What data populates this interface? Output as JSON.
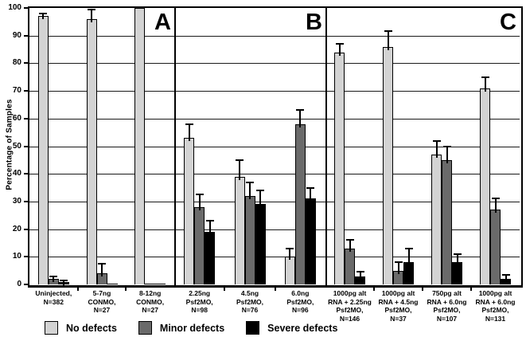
{
  "chart_data": {
    "type": "bar",
    "title": "",
    "xlabel": "",
    "ylabel": "Percentage of Samples",
    "ylim": [
      0,
      100
    ],
    "ytick_step": 10,
    "grid": true,
    "legend_position": "bottom",
    "series": [
      {
        "name": "No defects",
        "color": "#d3d3d3"
      },
      {
        "name": "Minor defects",
        "color": "#6a6a6a"
      },
      {
        "name": "Severe defects",
        "color": "#000000"
      }
    ],
    "panels": [
      {
        "label": "A",
        "groups": [
          {
            "category": "Uninjected,\nN=382",
            "values": [
              97,
              2,
              1
            ],
            "errors": [
              1,
              0.8,
              0.5
            ]
          },
          {
            "category": "5-7ng\nCONMO,\nN=27",
            "values": [
              96,
              4,
              0.3
            ],
            "errors": [
              3.5,
              3.5,
              0
            ]
          },
          {
            "category": "8-12ng\nCONMO,\nN=27",
            "values": [
              100,
              0.3,
              0.3
            ],
            "errors": [
              0,
              0,
              0
            ]
          }
        ]
      },
      {
        "label": "B",
        "groups": [
          {
            "category": "2.25ng\nPsf2MO,\nN=98",
            "values": [
              53,
              28,
              19
            ],
            "errors": [
              5,
              4.5,
              4
            ]
          },
          {
            "category": "4.5ng\nPsf2MO,\nN=76",
            "values": [
              39,
              32,
              29
            ],
            "errors": [
              6,
              5,
              5
            ]
          },
          {
            "category": "6.0ng\nPsf2MO,\nN=96",
            "values": [
              10,
              58,
              31
            ],
            "errors": [
              3,
              5,
              4
            ]
          }
        ]
      },
      {
        "label": "C",
        "groups": [
          {
            "category": "1000pg alt\nRNA + 2.25ng\nPsf2MO,\nN=146",
            "values": [
              84,
              13,
              3
            ],
            "errors": [
              3,
              3,
              1.5
            ]
          },
          {
            "category": "1000pg alt\nRNA + 4.5ng\nPsf2MO,\nN=37",
            "values": [
              86,
              5,
              8
            ],
            "errors": [
              5.5,
              3,
              5
            ]
          },
          {
            "category": "750pg alt\nRNA + 6.0ng\nPsf2MO,\nN=107",
            "values": [
              47,
              45,
              8
            ],
            "errors": [
              5,
              5,
              3
            ]
          },
          {
            "category": "1000pg alt\nRNA + 6.0ng\nPsf2MO,\nN=131",
            "values": [
              71,
              27,
              2
            ],
            "errors": [
              4,
              4,
              1.5
            ]
          }
        ]
      }
    ]
  }
}
